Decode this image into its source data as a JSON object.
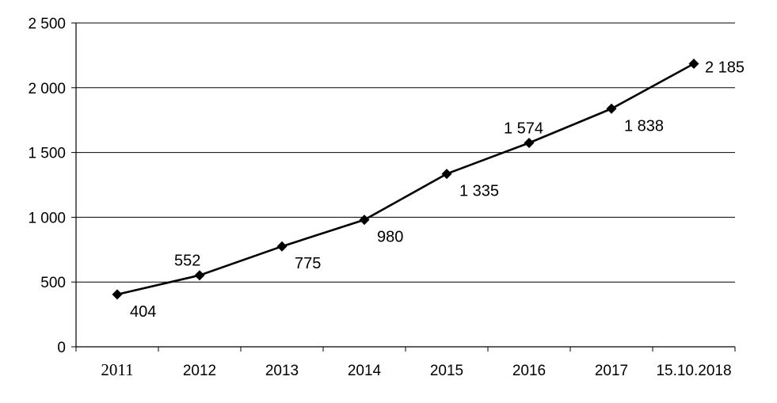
{
  "chart_data": {
    "type": "line",
    "title": "",
    "xlabel": "",
    "ylabel": "",
    "categories": [
      "2011",
      "2012",
      "2013",
      "2014",
      "2015",
      "2016",
      "2017",
      "15.10.2018"
    ],
    "series": [
      {
        "values": [
          404,
          552,
          775,
          980,
          1335,
          1574,
          1838,
          2185
        ],
        "data_labels": [
          "404",
          "552",
          "775",
          "980",
          "1 335",
          "1 574",
          "1 838",
          "2 185"
        ],
        "color": "#000000",
        "marker": "diamond"
      }
    ],
    "ylim": [
      0,
      2500
    ],
    "y_ticks": [
      0,
      500,
      1000,
      1500,
      2000,
      2500
    ],
    "y_tick_labels": [
      "0",
      "500",
      "1 000",
      "1 500",
      "2 000",
      "2 500"
    ],
    "grid": true,
    "legend": "none"
  }
}
